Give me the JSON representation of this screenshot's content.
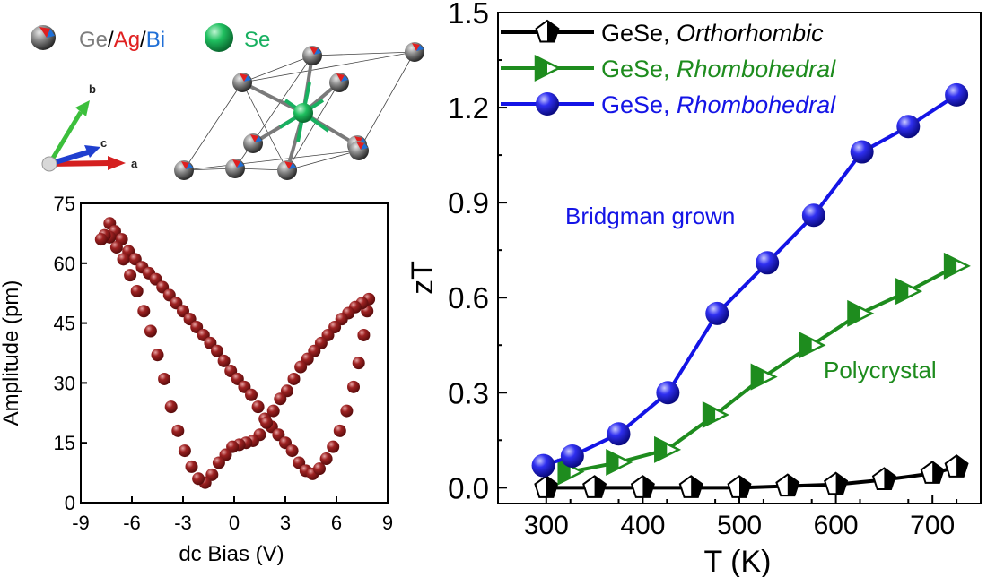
{
  "structure_panel": {
    "legend": {
      "ge": "Ge",
      "slash1": "/",
      "ag": "Ag",
      "slash2": "/",
      "bi": "Bi",
      "se": "Se"
    },
    "axes_labels": {
      "a": "a",
      "b": "b",
      "c": "c"
    },
    "colors": {
      "ge": "#7d7d7d",
      "ag": "#e02020",
      "bi": "#1f6fd6",
      "se": "#18b060",
      "axis_a": "#d42020",
      "axis_b": "#3cbf3c",
      "axis_c": "#1f3fcf"
    }
  },
  "chart_data": [
    {
      "type": "scatter",
      "title": "",
      "xlabel": "dc Bias (V)",
      "ylabel": "Amplitude (pm)",
      "xlim": [
        -9,
        9
      ],
      "ylim": [
        0,
        75
      ],
      "xticks": [
        "-9",
        "-6",
        "-3",
        "0",
        "3",
        "6",
        "9"
      ],
      "yticks": [
        "0",
        "15",
        "30",
        "45",
        "60",
        "75"
      ],
      "color": "#8b1a1a",
      "series": [
        {
          "points": [
            [
              -7.3,
              70
            ],
            [
              -7.0,
              68
            ],
            [
              -6.6,
              66
            ],
            [
              -6.2,
              63
            ],
            [
              -5.8,
              61
            ],
            [
              -5.4,
              59
            ],
            [
              -5.0,
              57.5
            ],
            [
              -4.6,
              56
            ],
            [
              -4.2,
              54
            ],
            [
              -3.8,
              52
            ],
            [
              -3.4,
              50
            ],
            [
              -3.0,
              48
            ],
            [
              -2.6,
              46
            ],
            [
              -2.2,
              44
            ],
            [
              -1.8,
              42
            ],
            [
              -1.4,
              40
            ],
            [
              -1.0,
              38
            ],
            [
              -0.6,
              35.5
            ],
            [
              -0.2,
              33
            ],
            [
              0.2,
              31
            ],
            [
              0.6,
              29
            ],
            [
              1.0,
              27
            ],
            [
              1.4,
              24
            ],
            [
              1.8,
              21
            ],
            [
              2.2,
              19
            ],
            [
              2.6,
              17
            ],
            [
              3.0,
              15
            ],
            [
              3.4,
              13
            ],
            [
              3.8,
              10
            ],
            [
              4.2,
              8
            ],
            [
              4.6,
              7.2
            ],
            [
              5.0,
              8.5
            ],
            [
              5.4,
              11
            ],
            [
              5.8,
              14
            ],
            [
              6.2,
              18
            ],
            [
              6.6,
              23
            ],
            [
              7.0,
              29
            ],
            [
              7.3,
              35
            ],
            [
              7.6,
              42
            ],
            [
              7.8,
              48
            ],
            [
              7.9,
              51
            ],
            [
              7.5,
              50
            ],
            [
              7.1,
              49
            ],
            [
              6.7,
              47.5
            ],
            [
              6.3,
              46
            ],
            [
              5.9,
              44
            ],
            [
              5.5,
              42
            ],
            [
              5.1,
              40
            ],
            [
              4.7,
              38
            ],
            [
              4.3,
              36
            ],
            [
              3.9,
              34
            ],
            [
              3.5,
              31
            ],
            [
              3.1,
              28
            ],
            [
              2.7,
              26
            ],
            [
              2.3,
              23
            ],
            [
              1.9,
              20
            ],
            [
              1.5,
              17
            ],
            [
              1.1,
              15.5
            ],
            [
              0.7,
              15
            ],
            [
              0.3,
              14.5
            ],
            [
              -0.1,
              14
            ],
            [
              -0.5,
              12
            ],
            [
              -0.9,
              10
            ],
            [
              -1.3,
              7
            ],
            [
              -1.7,
              5
            ],
            [
              -2.1,
              6
            ],
            [
              -2.5,
              9
            ],
            [
              -2.9,
              13
            ],
            [
              -3.3,
              18
            ],
            [
              -3.7,
              24
            ],
            [
              -4.1,
              31
            ],
            [
              -4.5,
              37
            ],
            [
              -4.9,
              43
            ],
            [
              -5.3,
              48
            ],
            [
              -5.7,
              53
            ],
            [
              -6.1,
              57
            ],
            [
              -6.5,
              61
            ],
            [
              -6.9,
              64
            ],
            [
              -7.3,
              66.5
            ],
            [
              -7.6,
              67
            ],
            [
              -7.8,
              66
            ]
          ]
        }
      ]
    },
    {
      "type": "line",
      "title": "",
      "xlabel": "T (K)",
      "ylabel": "zT",
      "xlim": [
        250,
        750
      ],
      "ylim": [
        -0.05,
        1.5
      ],
      "xticks": [
        "300",
        "400",
        "500",
        "600",
        "700"
      ],
      "yticks": [
        "0.0",
        "0.3",
        "0.6",
        "0.9",
        "1.2",
        "1.5"
      ],
      "legend_position": "top-left",
      "series": [
        {
          "name_prefix": "GeSe, ",
          "name_suffix": "Orthorhombic",
          "color": "#000000",
          "marker": "half-filled pentagon",
          "x": [
            300,
            350,
            400,
            450,
            500,
            550,
            600,
            650,
            700,
            725
          ],
          "y": [
            0.0,
            0.0,
            0.0,
            0.0,
            0.0,
            0.005,
            0.01,
            0.025,
            0.045,
            0.065
          ]
        },
        {
          "name_prefix": "GeSe, ",
          "name_suffix": "Rhombohedral",
          "color": "#1e8c1e",
          "marker": "half-filled right triangle",
          "x": [
            325,
            375,
            425,
            475,
            525,
            575,
            625,
            675,
            725
          ],
          "y": [
            0.05,
            0.08,
            0.12,
            0.23,
            0.35,
            0.45,
            0.55,
            0.62,
            0.7
          ],
          "annotation": "Polycrystal"
        },
        {
          "name_prefix": "GeSe, ",
          "name_suffix": "Rhombohedral",
          "color": "#1414e6",
          "marker": "filled circle",
          "x": [
            297,
            327,
            375,
            426,
            477,
            529,
            577,
            627,
            675,
            725
          ],
          "y": [
            0.07,
            0.1,
            0.17,
            0.3,
            0.55,
            0.71,
            0.86,
            1.06,
            1.14,
            1.24
          ],
          "annotation": "Bridgman grown"
        }
      ]
    }
  ]
}
